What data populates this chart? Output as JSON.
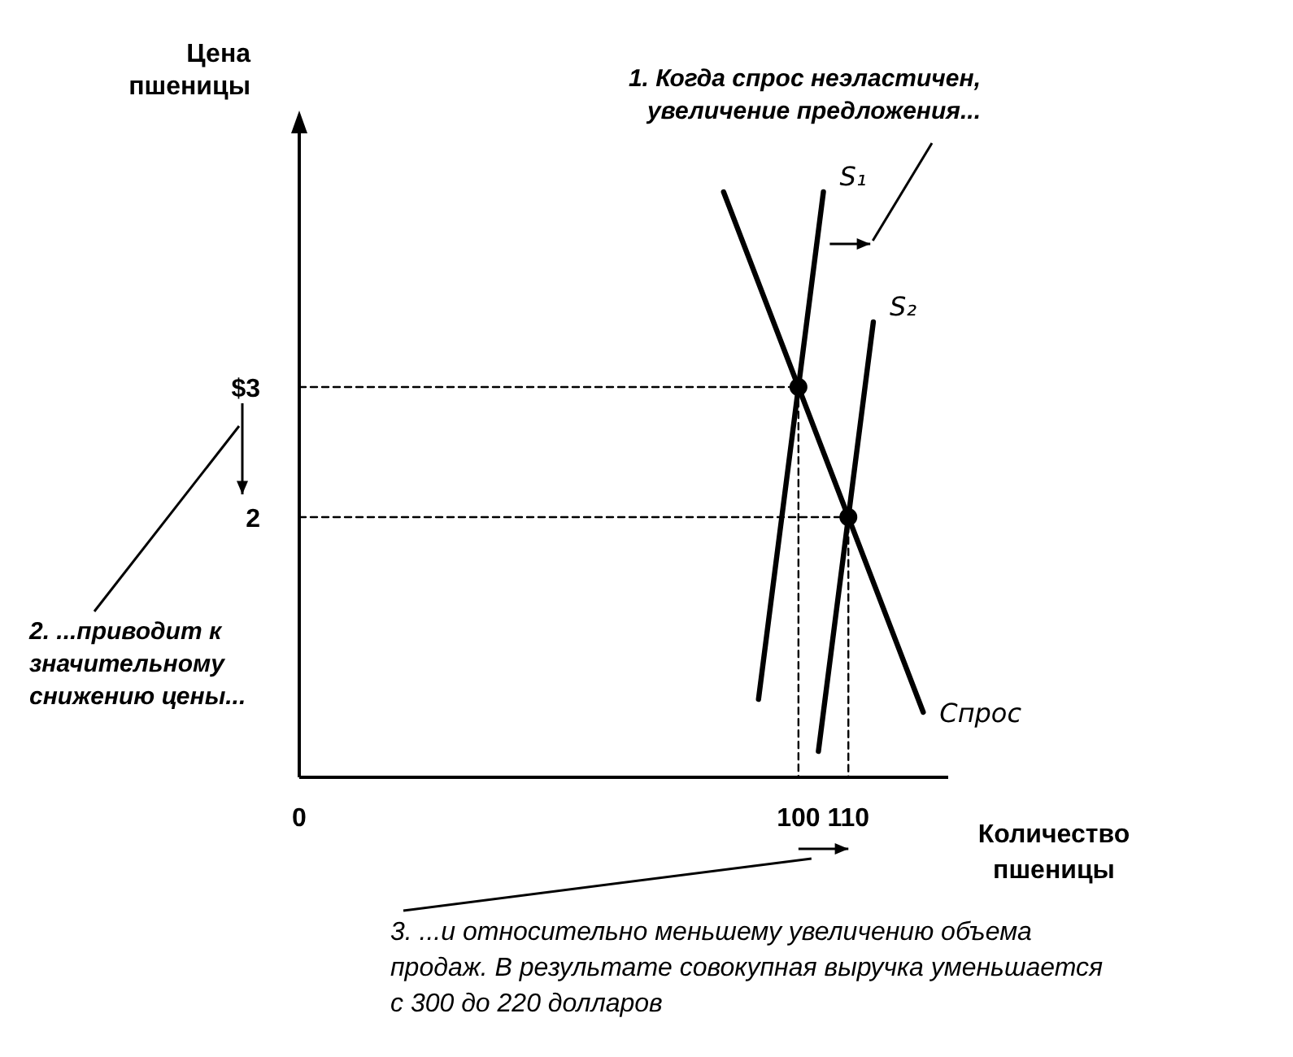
{
  "chart_data": {
    "type": "line",
    "xlabel": "Количество пшеницы",
    "ylabel": "Цена пшеницы",
    "xlim": [
      0,
      130
    ],
    "ylim": [
      0,
      5
    ],
    "xticks": [
      0,
      100,
      110
    ],
    "yticks": [
      {
        "value": 3,
        "label": "$3"
      },
      2
    ],
    "grid": false,
    "series": [
      {
        "name": "Спрос",
        "color": "#000000",
        "x": [
          85,
          100,
          110,
          125
        ],
        "values": [
          4.5,
          3,
          2,
          0.5
        ],
        "line_style": "solid",
        "marker": "none"
      },
      {
        "name": "S₁",
        "color": "#000000",
        "x": [
          92,
          100,
          105
        ],
        "values": [
          0.6,
          3,
          4.5
        ],
        "line_style": "solid",
        "marker": "none"
      },
      {
        "name": "S₂",
        "color": "#000000",
        "x": [
          104,
          110,
          115
        ],
        "values": [
          0.2,
          2,
          3.5
        ],
        "line_style": "solid",
        "marker": "none"
      },
      {
        "color": "#000000",
        "x": [
          0,
          100,
          100
        ],
        "values": [
          3,
          3,
          0
        ],
        "line_style": "dashed",
        "marker": "none"
      },
      {
        "color": "#000000",
        "x": [
          0,
          110,
          110
        ],
        "values": [
          2,
          2,
          0
        ],
        "line_style": "dashed",
        "marker": "none"
      },
      {
        "type": "scatter",
        "color": "#000000",
        "x": [
          100,
          110
        ],
        "values": [
          3,
          2
        ],
        "marker": "circle"
      }
    ],
    "annotations": [
      "1. Когда спрос неэластичен, увеличение предложения...",
      "2. ...приводит к значительному снижению цены...",
      "3. ...и относительно меньшему увеличению объема продаж. В результате совокупная выручка уменьшается с 300 до 220 долларов"
    ]
  }
}
